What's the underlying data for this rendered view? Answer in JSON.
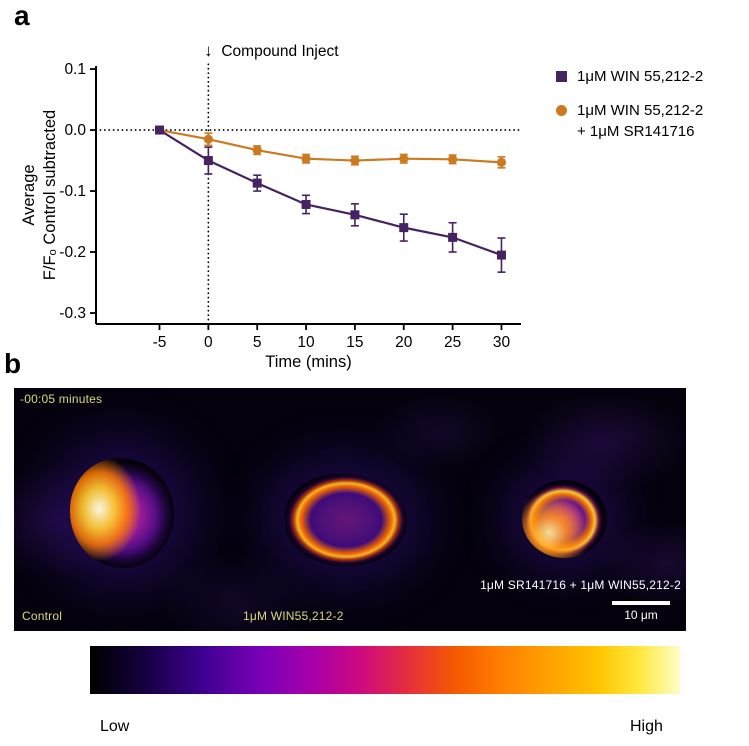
{
  "panel_a": {
    "label": "a",
    "arrow": "↓",
    "annotation": "Compound Inject"
  },
  "chart_data": {
    "type": "line",
    "title": "",
    "xlabel": "Time (mins)",
    "ylabel_line1": "Average",
    "ylabel_line2": "F/Fₒ Control subtracted",
    "x": [
      -5,
      0,
      5,
      10,
      15,
      20,
      25,
      30
    ],
    "xticks": [
      -5,
      0,
      5,
      10,
      15,
      20,
      25,
      30
    ],
    "yticks": [
      0.1,
      0.0,
      -0.1,
      -0.2,
      -0.3
    ],
    "ylim": [
      -0.3,
      0.1
    ],
    "grid": false,
    "legend_position": "right",
    "reference_lines": {
      "horizontal_y": 0,
      "vertical_x": 0
    },
    "series": [
      {
        "name": "1μM WIN 55,212-2",
        "legend_lines": [
          "1μM WIN 55,212-2"
        ],
        "marker": "square",
        "color": "#452260",
        "values": [
          0.0,
          -0.05,
          -0.087,
          -0.122,
          -0.139,
          -0.16,
          -0.176,
          -0.205
        ],
        "errors": [
          0.004,
          0.022,
          0.013,
          0.015,
          0.018,
          0.022,
          0.024,
          0.028
        ]
      },
      {
        "name": "1μM WIN 55,212-2 + 1μM SR141716",
        "legend_lines": [
          "1μM WIN 55,212-2",
          "+ 1μM SR141716"
        ],
        "marker": "circle",
        "color": "#cc7a21",
        "values": [
          0.0,
          -0.015,
          -0.033,
          -0.047,
          -0.05,
          -0.047,
          -0.048,
          -0.053
        ],
        "errors": [
          0.003,
          0.01,
          0.007,
          0.007,
          0.007,
          0.007,
          0.007,
          0.009
        ]
      }
    ]
  },
  "panel_b": {
    "label": "b",
    "timestamp": "-00:05 minutes",
    "image_labels": [
      "Control",
      "1μM WIN55,212-2",
      "1μM SR141716 + 1μM WIN55,212-2"
    ],
    "scale_bar": "10 μm",
    "lut": {
      "low": "Low",
      "high": "High"
    }
  }
}
